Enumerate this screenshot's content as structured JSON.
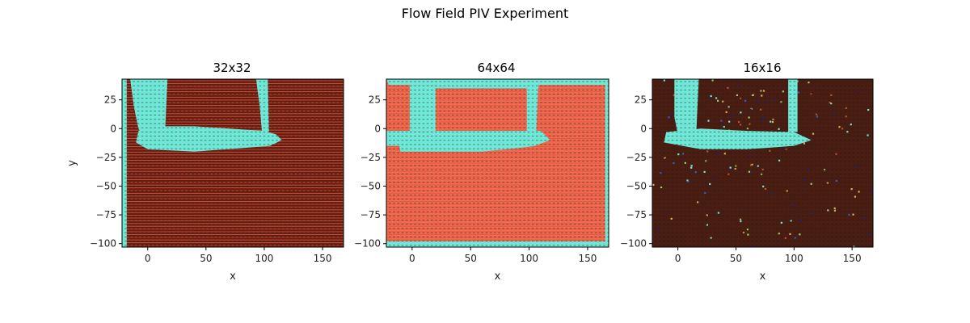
{
  "figure": {
    "title": "Flow Field PIV Experiment"
  },
  "colors": {
    "mask": "#6fe8d8",
    "panel1_bg": "#6b1a10",
    "panel2_bg": "#f26a4f",
    "panel3_bg": "#4a1d12",
    "panel1_stripe": "#c45a3e",
    "panel2_stripe": "#e05a40",
    "vector": "#1a1a1a"
  },
  "chart_data": [
    {
      "type": "heatmap",
      "title": "32x32",
      "xlabel": "x",
      "ylabel": "y",
      "xlim": [
        -22,
        168
      ],
      "ylim": [
        -103,
        43
      ],
      "xticks": [
        0,
        50,
        100,
        150
      ],
      "yticks": [
        25,
        0,
        -25,
        -50,
        -75,
        -100
      ],
      "regions": [
        {
          "name": "left-wall",
          "polygon": [
            [
              -22,
              -103
            ],
            [
              -18,
              -103
            ],
            [
              -18,
              43
            ],
            [
              -22,
              43
            ]
          ]
        },
        {
          "name": "left-post",
          "polygon": [
            [
              -2,
              43
            ],
            [
              17,
              43
            ],
            [
              15,
              0
            ],
            [
              12,
              -12
            ],
            [
              5,
              -18
            ],
            [
              -2,
              -8
            ],
            [
              -8,
              0
            ],
            [
              -12,
              20
            ],
            [
              -15,
              43
            ]
          ]
        },
        {
          "name": "right-post",
          "polygon": [
            [
              93,
              43
            ],
            [
              103,
              43
            ],
            [
              104,
              -3
            ],
            [
              98,
              -3
            ],
            [
              96,
              20
            ]
          ]
        },
        {
          "name": "blade",
          "polygon": [
            [
              -8,
              -2
            ],
            [
              5,
              2
            ],
            [
              40,
              2
            ],
            [
              100,
              -2
            ],
            [
              110,
              -5
            ],
            [
              115,
              -10
            ],
            [
              105,
              -15
            ],
            [
              80,
              -17
            ],
            [
              40,
              -20
            ],
            [
              0,
              -18
            ],
            [
              -10,
              -12
            ]
          ]
        }
      ]
    },
    {
      "type": "heatmap",
      "title": "64x64",
      "xlabel": "x",
      "ylabel": "",
      "xlim": [
        -22,
        168
      ],
      "ylim": [
        -103,
        43
      ],
      "xticks": [
        0,
        50,
        100,
        150
      ],
      "yticks": [
        25,
        0,
        -25,
        -50,
        -75,
        -100
      ],
      "regions": [
        {
          "name": "frame",
          "polygon": [
            [
              -22,
              43
            ],
            [
              168,
              43
            ],
            [
              168,
              -103
            ],
            [
              -22,
              -103
            ],
            [
              -22,
              -98
            ],
            [
              165,
              -98
            ],
            [
              165,
              38
            ],
            [
              -20,
              38
            ]
          ]
        },
        {
          "name": "left-post",
          "polygon": [
            [
              -2,
              38
            ],
            [
              20,
              38
            ],
            [
              20,
              -2
            ],
            [
              -2,
              -2
            ]
          ]
        },
        {
          "name": "top-bar",
          "polygon": [
            [
              20,
              43
            ],
            [
              108,
              43
            ],
            [
              108,
              35
            ],
            [
              20,
              35
            ]
          ]
        },
        {
          "name": "right-post",
          "polygon": [
            [
              98,
              43
            ],
            [
              108,
              43
            ],
            [
              106,
              -5
            ],
            [
              98,
              -5
            ]
          ]
        },
        {
          "name": "blade",
          "polygon": [
            [
              -8,
              -2
            ],
            [
              110,
              -2
            ],
            [
              118,
              -10
            ],
            [
              105,
              -15
            ],
            [
              90,
              -17
            ],
            [
              60,
              -20
            ],
            [
              -10,
              -20
            ],
            [
              -12,
              -10
            ]
          ]
        },
        {
          "name": "lower-left-block",
          "polygon": [
            [
              -22,
              -2
            ],
            [
              -8,
              -2
            ],
            [
              -8,
              -15
            ],
            [
              -22,
              -15
            ]
          ]
        }
      ]
    },
    {
      "type": "heatmap",
      "title": "16x16",
      "xlabel": "x",
      "ylabel": "",
      "xlim": [
        -22,
        168
      ],
      "ylim": [
        -103,
        43
      ],
      "xticks": [
        0,
        50,
        100,
        150
      ],
      "yticks": [
        25,
        0,
        -25,
        -50,
        -75,
        -100
      ],
      "regions": [
        {
          "name": "left-post",
          "polygon": [
            [
              -3,
              43
            ],
            [
              18,
              43
            ],
            [
              16,
              0
            ],
            [
              12,
              -8
            ],
            [
              0,
              -5
            ],
            [
              -3,
              10
            ]
          ]
        },
        {
          "name": "right-post",
          "polygon": [
            [
              95,
              43
            ],
            [
              103,
              43
            ],
            [
              103,
              -3
            ],
            [
              95,
              -3
            ]
          ]
        },
        {
          "name": "blade",
          "polygon": [
            [
              -10,
              -3
            ],
            [
              20,
              0
            ],
            [
              60,
              -2
            ],
            [
              100,
              -3
            ],
            [
              115,
              -10
            ],
            [
              100,
              -15
            ],
            [
              60,
              -18
            ],
            [
              20,
              -18
            ],
            [
              -12,
              -12
            ]
          ]
        }
      ]
    }
  ]
}
